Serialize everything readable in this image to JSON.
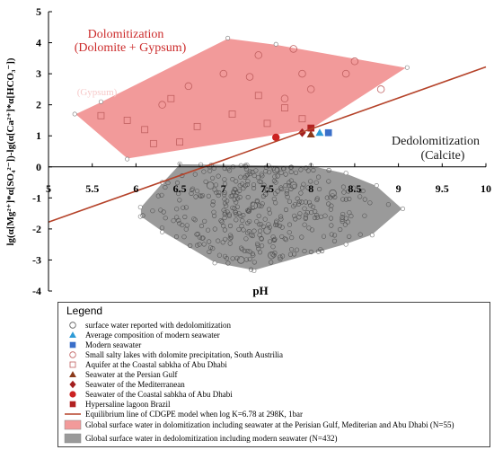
{
  "chart_data": {
    "type": "scatter",
    "xlabel": "pH",
    "ylabel": "lg(α[Mg²⁺]*α[SO₄²⁻])-lg(α[Ca²⁺]*α[HCO₃⁻])",
    "xlim": [
      5,
      10
    ],
    "ylim": [
      -4,
      5
    ],
    "x_ticks": [
      "5",
      "5.5",
      "6",
      "6.5",
      "7",
      "7.5",
      "8",
      "8.5",
      "9",
      "9.5",
      "10"
    ],
    "y_ticks": [
      "-4",
      "-3",
      "-2",
      "-1",
      "0",
      "1",
      "2",
      "3",
      "4",
      "5"
    ],
    "annotations": {
      "dolomitization_title": "Dolomitization",
      "dolomitization_sub": "(Dolomite + Gypsum)",
      "dedolomitization_title": "Dedolomitization",
      "dedolomitization_sub": "(Calcite)",
      "faint_label": "(Gypsum)"
    },
    "equilibrium_line": {
      "x": [
        5,
        10
      ],
      "y": [
        -1.78,
        3.22
      ]
    },
    "dolomitization_region": {
      "color": "#f29a9a",
      "polygon": [
        [
          5.3,
          1.7
        ],
        [
          5.6,
          2.1
        ],
        [
          7.05,
          4.15
        ],
        [
          7.6,
          3.95
        ],
        [
          9.1,
          3.2
        ],
        [
          8.0,
          1.2
        ],
        [
          5.9,
          0.25
        ]
      ]
    },
    "dedolomitization_region": {
      "color": "#9a9a9a",
      "polygon": [
        [
          6.5,
          0.1
        ],
        [
          8.0,
          0.05
        ],
        [
          8.4,
          -0.2
        ],
        [
          8.75,
          -0.6
        ],
        [
          9.05,
          -1.35
        ],
        [
          8.7,
          -2.2
        ],
        [
          8.4,
          -2.5
        ],
        [
          7.35,
          -3.35
        ],
        [
          6.9,
          -3.1
        ],
        [
          6.3,
          -2.1
        ],
        [
          6.05,
          -1.6
        ],
        [
          6.05,
          -1.3
        ],
        [
          6.3,
          -0.5
        ]
      ]
    },
    "series": [
      {
        "name": "surface water reported with dedolomitization",
        "marker": "circle-open",
        "color": "#5a5a5a",
        "points": [
          [
            7.6,
            -0.1
          ],
          [
            7.8,
            -0.6
          ],
          [
            7.35,
            -1.25
          ],
          [
            7.5,
            -2.05
          ],
          [
            7.55,
            -2.85
          ],
          [
            8.25,
            -0.85
          ],
          [
            6.85,
            -0.6
          ],
          [
            7.2,
            -3.0
          ]
        ]
      },
      {
        "name": "Average composition of modern seawater",
        "marker": "triangle",
        "color": "#2e9bd6",
        "points": [
          [
            8.1,
            1.1
          ]
        ]
      },
      {
        "name": "Modern seawater",
        "marker": "square",
        "color": "#3a6fc9",
        "points": [
          [
            8.2,
            1.1
          ]
        ]
      },
      {
        "name": "Small salty lakes with dolomite precipitation, South Austrilia",
        "marker": "circle-open",
        "color": "#c06060",
        "points": [
          [
            7.0,
            3.0
          ],
          [
            7.4,
            3.6
          ],
          [
            8.0,
            2.5
          ],
          [
            8.4,
            3.0
          ],
          [
            8.8,
            2.5
          ],
          [
            7.7,
            2.2
          ],
          [
            7.3,
            2.9
          ],
          [
            6.6,
            2.6
          ],
          [
            8.5,
            3.4
          ],
          [
            7.9,
            3.0
          ],
          [
            6.3,
            2.0
          ],
          [
            7.8,
            3.8
          ]
        ]
      },
      {
        "name": "Aquifer at the Coastal sabkha of Abu Dhabi",
        "marker": "square-open",
        "color": "#c06060",
        "points": [
          [
            5.6,
            1.65
          ],
          [
            6.1,
            1.2
          ],
          [
            6.5,
            0.8
          ],
          [
            7.1,
            1.7
          ],
          [
            7.4,
            2.3
          ],
          [
            6.2,
            0.75
          ],
          [
            7.9,
            1.55
          ],
          [
            5.9,
            1.5
          ],
          [
            6.7,
            1.3
          ],
          [
            7.5,
            1.4
          ],
          [
            6.4,
            2.2
          ],
          [
            7.7,
            1.9
          ]
        ]
      },
      {
        "name": "Seawater at the Persian Gulf",
        "marker": "triangle",
        "color": "#8b3a1a",
        "points": [
          [
            8.0,
            1.05
          ]
        ]
      },
      {
        "name": "Seawater of the Mediterranean",
        "marker": "diamond",
        "color": "#a31f1f",
        "points": [
          [
            7.9,
            1.1
          ]
        ]
      },
      {
        "name": "Seawater of the Coastal sabkha of Abu Dhabi",
        "marker": "circle",
        "color": "#cc2222",
        "points": [
          [
            7.6,
            0.95
          ]
        ]
      },
      {
        "name": "Hypersaline lagoon Brazil",
        "marker": "square",
        "color": "#b22222",
        "points": [
          [
            8.0,
            1.25
          ]
        ]
      }
    ],
    "legend": {
      "title": "Legend",
      "placement": "bottom",
      "entries": [
        {
          "label": "surface water reported with dedolomitization",
          "marker": "circle-open",
          "color": "#5a5a5a"
        },
        {
          "label": "Average composition of modern seawater",
          "marker": "triangle",
          "color": "#2e9bd6"
        },
        {
          "label": "Modern seawater",
          "marker": "square",
          "color": "#3a6fc9"
        },
        {
          "label": "Small salty lakes with dolomite precipitation, South Austrilia",
          "marker": "circle-open",
          "color": "#c06060"
        },
        {
          "label": "Aquifer at the Coastal sabkha of Abu Dhabi",
          "marker": "square-open",
          "color": "#c06060"
        },
        {
          "label": "Seawater at the Persian Gulf",
          "marker": "triangle",
          "color": "#8b3a1a"
        },
        {
          "label": "Seawater of the Mediterranean",
          "marker": "diamond",
          "color": "#a31f1f"
        },
        {
          "label": "Seawater of the Coastal sabkha of Abu Dhabi",
          "marker": "circle",
          "color": "#cc2222"
        },
        {
          "label": "Hypersaline lagoon Brazil",
          "marker": "square",
          "color": "#b22222"
        },
        {
          "label": "Equilibrium line of CDGPE model when log K=6.78 at 298K, 1bar",
          "marker": "line",
          "color": "#b5432a"
        },
        {
          "label": "Global surface water in dolomitization including seawater at the Perisian Gulf, Mediterian and Abu Dhabi (N=55)",
          "marker": "patch",
          "color": "#f29a9a"
        },
        {
          "label": "Global surface water in dedolomitization including modern seawater (N=432)",
          "marker": "patch",
          "color": "#9a9a9a"
        }
      ]
    },
    "grid": false
  }
}
